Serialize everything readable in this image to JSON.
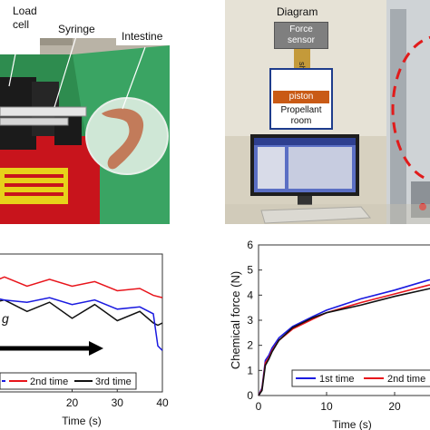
{
  "photo_left": {
    "labels": {
      "load_cell_line1": "Load",
      "load_cell_line2": "cell",
      "syringe": "Syringe",
      "intestine": "Intestine"
    }
  },
  "photo_right": {
    "diagram_title": "Diagram",
    "force_sensor_line1": "Force",
    "force_sensor_line2": "sensor",
    "shaft": "shaft",
    "piston": "piston",
    "room_line1": "Propellant",
    "room_line2": "room"
  },
  "chart_data": [
    {
      "type": "line",
      "xlabel": "Time (s)",
      "xlim": [
        0,
        40
      ],
      "xticks": [
        20,
        30,
        40
      ],
      "partial_text": "g",
      "series": [
        {
          "name": "2nd time",
          "color": "#e8141b",
          "x": [
            0,
            5,
            10,
            15,
            20,
            25,
            30,
            35,
            38,
            40
          ],
          "y": [
            2.3,
            2.5,
            2.3,
            2.45,
            2.3,
            2.4,
            2.2,
            2.25,
            2.1,
            2.05
          ]
        },
        {
          "name": "3rd time",
          "color": "#111111",
          "x": [
            0,
            5,
            10,
            15,
            20,
            25,
            30,
            35,
            38,
            39,
            40
          ],
          "y": [
            1.9,
            2.0,
            1.75,
            1.95,
            1.6,
            1.9,
            1.55,
            1.75,
            1.5,
            1.45,
            1.5
          ]
        },
        {
          "name": "",
          "color": "#1a1ae0",
          "x": [
            0,
            5,
            10,
            15,
            20,
            25,
            30,
            35,
            38,
            39,
            40
          ],
          "y": [
            2.1,
            2.0,
            1.95,
            2.05,
            1.9,
            2.0,
            1.8,
            1.85,
            1.7,
            1.0,
            0.9
          ]
        }
      ],
      "legend": [
        "2nd time",
        "3rd time"
      ],
      "legend_position": "bottom"
    },
    {
      "type": "line",
      "xlabel": "Time (s)",
      "ylabel": "Chemical force (N)",
      "ylim": [
        0,
        6
      ],
      "yticks": [
        0,
        1,
        2,
        3,
        4,
        5,
        6
      ],
      "xlim": [
        0,
        30
      ],
      "xticks": [
        0,
        10,
        20
      ],
      "series": [
        {
          "name": "1st time",
          "color": "#1a1ae0",
          "x": [
            0,
            0.5,
            1,
            1.5,
            2,
            3,
            5,
            8,
            10,
            15,
            20,
            25,
            28
          ],
          "y": [
            0,
            0.3,
            1.4,
            1.6,
            1.9,
            2.3,
            2.75,
            3.15,
            3.4,
            3.85,
            4.2,
            4.6,
            4.75
          ]
        },
        {
          "name": "2nd time",
          "color": "#e8141b",
          "x": [
            0,
            0.5,
            1,
            1.5,
            2,
            3,
            5,
            8,
            10,
            15,
            20,
            25,
            28
          ],
          "y": [
            0,
            0.25,
            1.3,
            1.5,
            1.8,
            2.2,
            2.65,
            3.05,
            3.3,
            3.7,
            4.05,
            4.4,
            4.55
          ]
        },
        {
          "name": "",
          "color": "#111111",
          "x": [
            0,
            0.5,
            1,
            1.5,
            2,
            3,
            5,
            8,
            10,
            15,
            20,
            25,
            28
          ],
          "y": [
            0,
            0.2,
            1.2,
            1.45,
            1.75,
            2.2,
            2.7,
            3.1,
            3.3,
            3.6,
            3.95,
            4.25,
            4.45
          ]
        }
      ],
      "legend": [
        "1st time",
        "2nd time"
      ],
      "legend_position": "bottom"
    }
  ]
}
